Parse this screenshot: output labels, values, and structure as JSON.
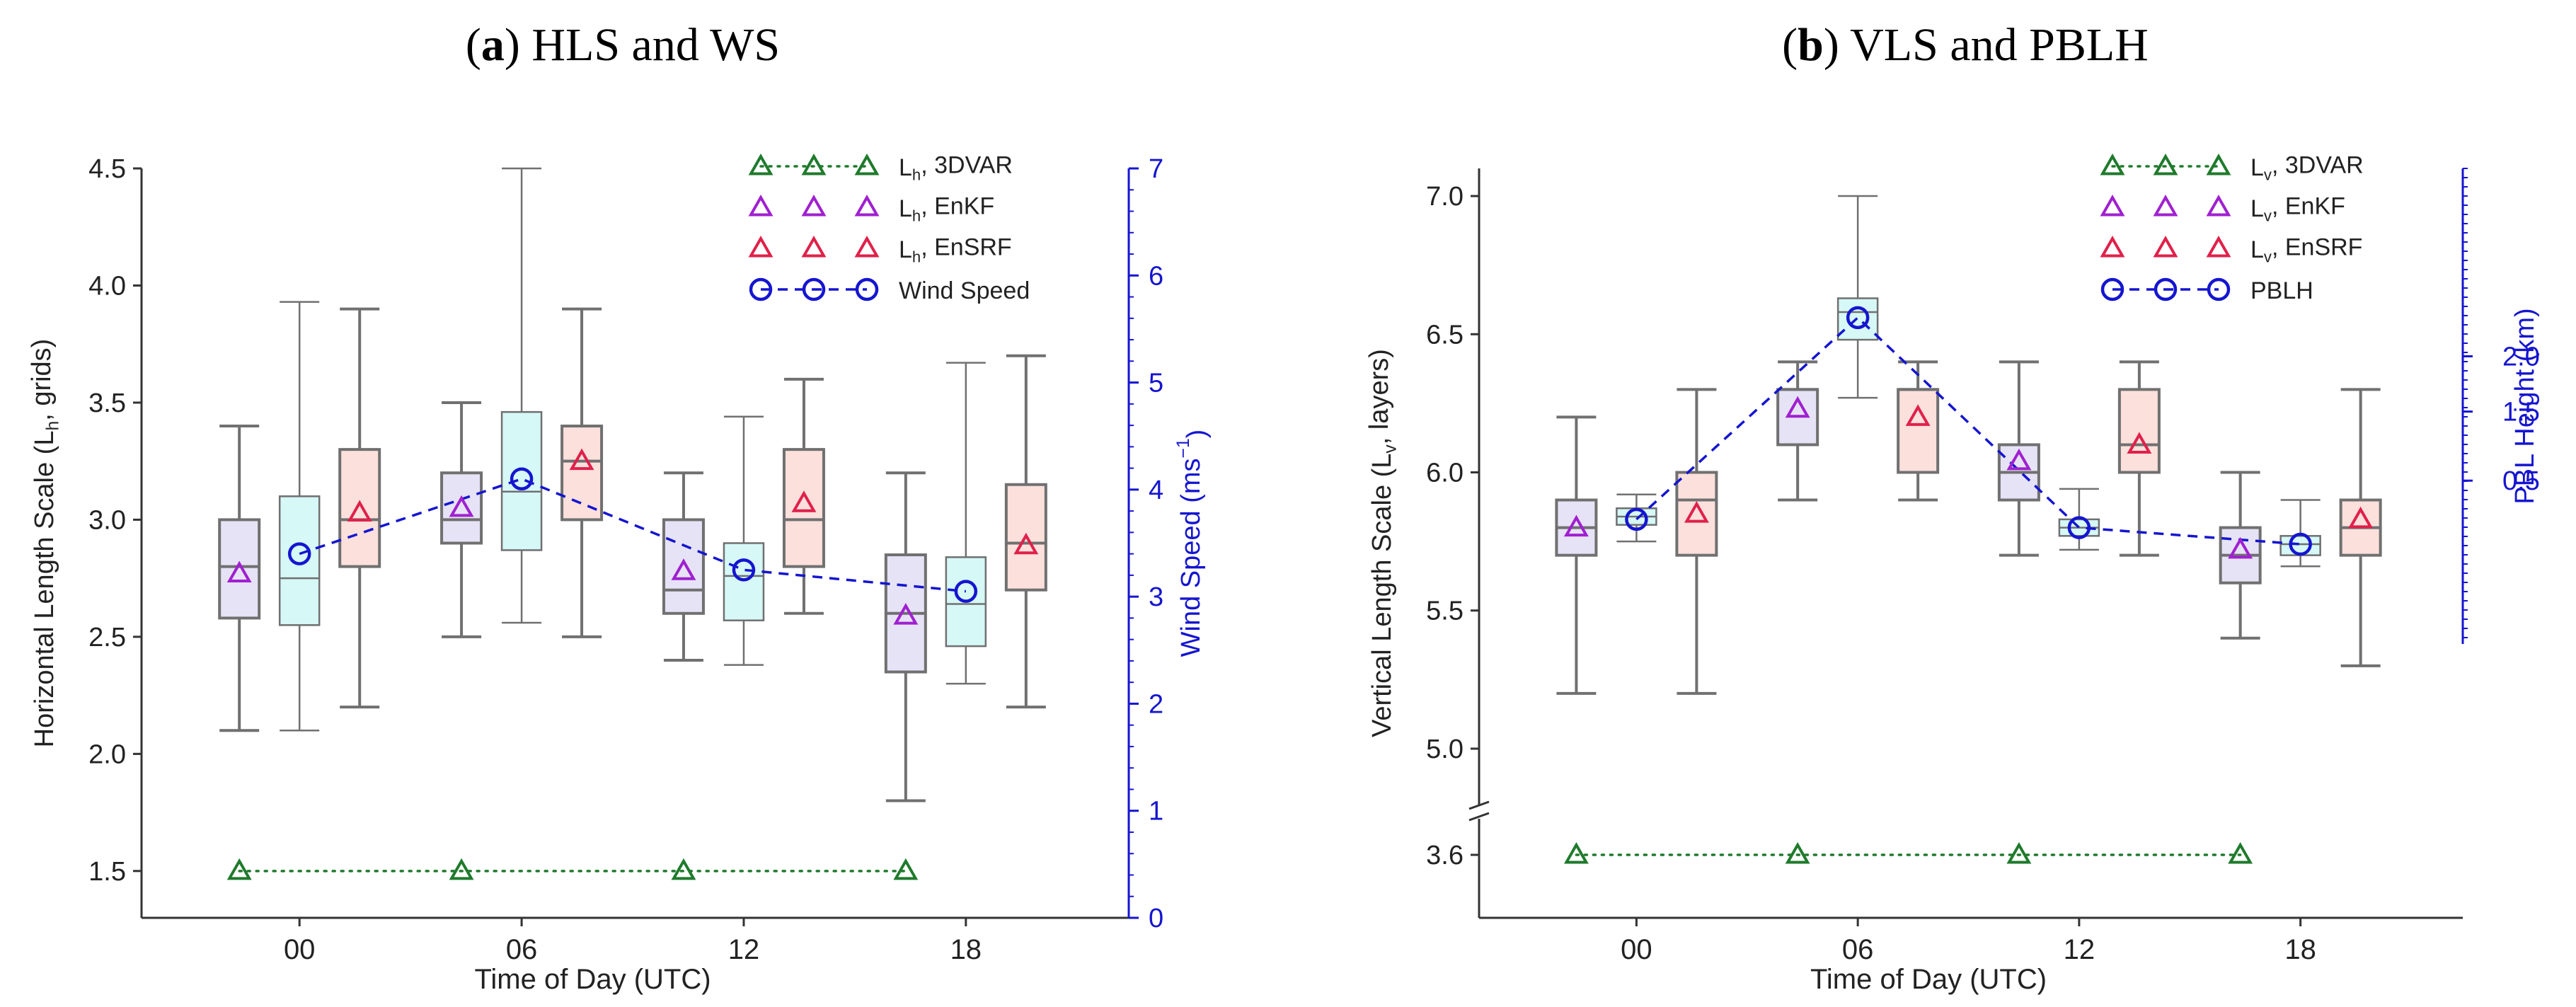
{
  "colors": {
    "axis": "#333333",
    "box_stroke": "#707070",
    "box_3dvar": "#e6e3f6",
    "box_enkf": "#d6f8f7",
    "box_ensrf": "#fbe0dc",
    "green": "#1f7a2c",
    "purple": "#a020d0",
    "red": "#e0204a",
    "blue": "#1515d0"
  },
  "chart_data": [
    {
      "type": "box",
      "panel_letter": "a",
      "panel_title": "HLS and WS",
      "xlabel": "Time of Day (UTC)",
      "ylabel_pre": "Horizontal Length Scale (L",
      "ylabel_sub": "h",
      "ylabel_post": ", grids)",
      "ylabel_right": "Wind Speed (ms",
      "ylabel_right_sup": "−1",
      "ylabel_right_post": ")",
      "categories": [
        "00",
        "06",
        "12",
        "18"
      ],
      "ylim": [
        1.3,
        4.5
      ],
      "yticks": [
        "1.5",
        "2.0",
        "2.5",
        "3.0",
        "3.5",
        "4.0",
        "4.5"
      ],
      "y2lim": [
        0,
        7
      ],
      "y2ticks": [
        "0",
        "1",
        "2",
        "3",
        "4",
        "5",
        "6",
        "7"
      ],
      "boxes": [
        {
          "time": "00",
          "series": "3DVAR",
          "whislo": 2.1,
          "q1": 2.58,
          "med": 2.8,
          "q3": 3.0,
          "whishi": 3.4
        },
        {
          "time": "00",
          "series": "EnKF",
          "whislo": 2.1,
          "q1": 2.55,
          "med": 2.75,
          "q3": 3.1,
          "whishi": 3.93
        },
        {
          "time": "00",
          "series": "EnSRF",
          "whislo": 2.2,
          "q1": 2.8,
          "med": 3.0,
          "q3": 3.3,
          "whishi": 3.9
        },
        {
          "time": "06",
          "series": "3DVAR",
          "whislo": 2.5,
          "q1": 2.9,
          "med": 3.0,
          "q3": 3.2,
          "whishi": 3.5
        },
        {
          "time": "06",
          "series": "EnKF",
          "whislo": 2.56,
          "q1": 2.87,
          "med": 3.12,
          "q3": 3.46,
          "whishi": 4.5
        },
        {
          "time": "06",
          "series": "EnSRF",
          "whislo": 2.5,
          "q1": 3.0,
          "med": 3.25,
          "q3": 3.4,
          "whishi": 3.9
        },
        {
          "time": "12",
          "series": "3DVAR",
          "whislo": 2.4,
          "q1": 2.6,
          "med": 2.7,
          "q3": 3.0,
          "whishi": 3.2
        },
        {
          "time": "12",
          "series": "EnKF",
          "whislo": 2.38,
          "q1": 2.57,
          "med": 2.76,
          "q3": 2.9,
          "whishi": 3.44
        },
        {
          "time": "12",
          "series": "EnSRF",
          "whislo": 2.6,
          "q1": 2.8,
          "med": 3.0,
          "q3": 3.3,
          "whishi": 3.6
        },
        {
          "time": "18",
          "series": "3DVAR",
          "whislo": 1.8,
          "q1": 2.35,
          "med": 2.6,
          "q3": 2.85,
          "whishi": 3.2
        },
        {
          "time": "18",
          "series": "EnKF",
          "whislo": 2.3,
          "q1": 2.46,
          "med": 2.64,
          "q3": 2.84,
          "whishi": 3.67
        },
        {
          "time": "18",
          "series": "EnSRF",
          "whislo": 2.2,
          "q1": 2.7,
          "med": 2.9,
          "q3": 3.15,
          "whishi": 3.7
        }
      ],
      "means": {
        "3DVAR": [
          2.77,
          3.05,
          2.78,
          2.59
        ],
        "EnKF": [
          2.84,
          3.17,
          2.78,
          2.69
        ],
        "EnSRF": [
          3.03,
          3.25,
          3.07,
          2.89
        ]
      },
      "line_3dvar": [
        1.5,
        1.5,
        1.5,
        1.5
      ],
      "line_right": [
        3.4,
        4.1,
        3.25,
        3.05
      ],
      "legend": [
        {
          "key": "3DVAR",
          "pre": "L",
          "sub": "h",
          "post": ", 3DVAR"
        },
        {
          "key": "EnKF",
          "pre": "L",
          "sub": "h",
          "post": ", EnKF"
        },
        {
          "key": "EnSRF",
          "pre": "L",
          "sub": "h",
          "post": ", EnSRF"
        },
        {
          "key": "right",
          "pre": "Wind Speed",
          "sub": "",
          "post": ""
        }
      ]
    },
    {
      "type": "box",
      "panel_letter": "b",
      "panel_title": "VLS and PBLH",
      "xlabel": "Time of Day (UTC)",
      "ylabel_pre": "Vertical Length Scale (L",
      "ylabel_sub": "v",
      "ylabel_post": ", layers)",
      "ylabel_right": "PBL Height (km)",
      "ylabel_right_sup": "",
      "ylabel_right_post": "",
      "categories": [
        "00",
        "06",
        "12",
        "18"
      ],
      "ylim": [
        4.9,
        7.1
      ],
      "yticks": [
        "5.0",
        "5.5",
        "6.0",
        "6.5",
        "7.0"
      ],
      "broken_tick": "3.6",
      "broken_value": 3.6,
      "y2ticks": [
        "0.5",
        "1.5",
        "2.0"
      ],
      "y2tick_positions_primary": [
        5.97,
        6.22,
        6.42
      ],
      "boxes": [
        {
          "time": "00",
          "series": "3DVAR",
          "whislo": 5.2,
          "q1": 5.7,
          "med": 5.8,
          "q3": 5.9,
          "whishi": 6.2
        },
        {
          "time": "00",
          "series": "EnKF",
          "whislo": 5.75,
          "q1": 5.81,
          "med": 5.84,
          "q3": 5.87,
          "whishi": 5.92
        },
        {
          "time": "00",
          "series": "EnSRF",
          "whislo": 5.2,
          "q1": 5.7,
          "med": 5.9,
          "q3": 6.0,
          "whishi": 6.3
        },
        {
          "time": "06",
          "series": "3DVAR",
          "whislo": 5.9,
          "q1": 6.1,
          "med": 6.3,
          "q3": 6.3,
          "whishi": 6.4
        },
        {
          "time": "06",
          "series": "EnKF",
          "whislo": 6.27,
          "q1": 6.48,
          "med": 6.58,
          "q3": 6.63,
          "whishi": 7.0
        },
        {
          "time": "06",
          "series": "EnSRF",
          "whislo": 5.9,
          "q1": 6.0,
          "med": 6.3,
          "q3": 6.3,
          "whishi": 6.4
        },
        {
          "time": "12",
          "series": "3DVAR",
          "whislo": 5.7,
          "q1": 5.9,
          "med": 6.0,
          "q3": 6.1,
          "whishi": 6.4
        },
        {
          "time": "12",
          "series": "EnKF",
          "whislo": 5.72,
          "q1": 5.77,
          "med": 5.8,
          "q3": 5.83,
          "whishi": 5.94
        },
        {
          "time": "12",
          "series": "EnSRF",
          "whislo": 5.7,
          "q1": 6.0,
          "med": 6.1,
          "q3": 6.3,
          "whishi": 6.4
        },
        {
          "time": "18",
          "series": "3DVAR",
          "whislo": 5.4,
          "q1": 5.6,
          "med": 5.7,
          "q3": 5.8,
          "whishi": 6.0
        },
        {
          "time": "18",
          "series": "EnKF",
          "whislo": 5.66,
          "q1": 5.7,
          "med": 5.74,
          "q3": 5.77,
          "whishi": 5.9
        },
        {
          "time": "18",
          "series": "EnSRF",
          "whislo": 5.3,
          "q1": 5.7,
          "med": 5.8,
          "q3": 5.9,
          "whishi": 6.3
        }
      ],
      "means": {
        "3DVAR": [
          5.8,
          6.23,
          6.04,
          5.72
        ],
        "EnKF": [
          5.83,
          6.56,
          5.8,
          5.74
        ],
        "EnSRF": [
          5.85,
          6.2,
          6.1,
          5.83
        ]
      },
      "line_3dvar": [
        3.6,
        3.6,
        3.6,
        3.6
      ],
      "line_right": [
        5.83,
        6.56,
        5.8,
        5.74
      ],
      "legend": [
        {
          "key": "3DVAR",
          "pre": "L",
          "sub": "v",
          "post": ", 3DVAR"
        },
        {
          "key": "EnKF",
          "pre": "L",
          "sub": "v",
          "post": ", EnKF"
        },
        {
          "key": "EnSRF",
          "pre": "L",
          "sub": "v",
          "post": ", EnSRF"
        },
        {
          "key": "right",
          "pre": "PBLH",
          "sub": "",
          "post": ""
        }
      ]
    }
  ]
}
